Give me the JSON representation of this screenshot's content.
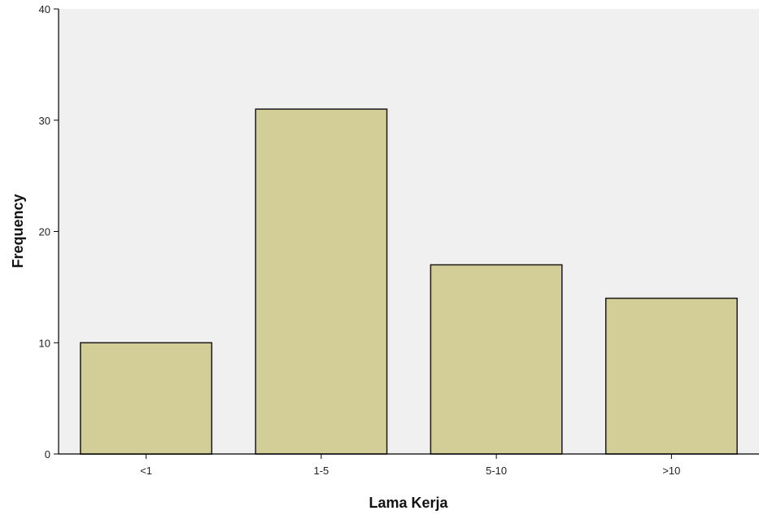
{
  "colors": {
    "plot_background": "#f0f0f0",
    "bar_fill": "#d3ce97",
    "bar_stroke": "#1a1a1a",
    "axis": "#000000"
  },
  "chart_data": {
    "type": "bar",
    "categories": [
      "<1",
      "1-5",
      "5-10",
      ">10"
    ],
    "values": [
      10,
      31,
      17,
      14
    ],
    "xlabel": "Lama Kerja",
    "ylabel": "Frequency",
    "ylim": [
      0,
      40
    ],
    "yticks": [
      0,
      10,
      20,
      30,
      40
    ],
    "grid": false,
    "legend": "none"
  }
}
